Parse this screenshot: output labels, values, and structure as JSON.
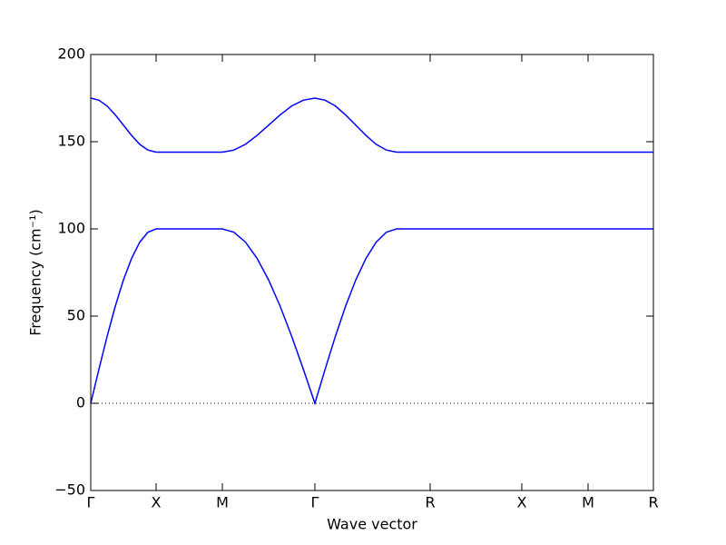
{
  "chart_data": {
    "type": "line",
    "xlabel": "Wave vector",
    "ylabel": "Frequency (cm⁻¹)",
    "x": [
      0,
      0.09,
      0.18,
      0.27,
      0.36,
      0.45,
      0.54,
      0.63,
      0.72,
      1.08,
      1.45,
      1.5775,
      1.705,
      1.8325,
      1.96,
      2.0875,
      2.215,
      2.3425,
      2.47,
      2.5825,
      2.695,
      2.8075,
      2.92,
      3.0325,
      3.145,
      3.2575,
      3.37,
      3.74,
      4.75,
      5.48,
      6.2
    ],
    "series": [
      {
        "color": "#0000ff",
        "values": [
          0,
          19.5,
          38.3,
          55.6,
          70.7,
          83.1,
          92.4,
          98.1,
          100,
          100,
          100,
          98.1,
          92.4,
          83.1,
          70.7,
          55.6,
          38.3,
          19.5,
          0,
          19.5,
          38.3,
          55.6,
          70.7,
          83.1,
          92.4,
          98.1,
          100,
          100,
          100,
          100,
          100
        ]
      },
      {
        "color": "#0000ff",
        "values": [
          175,
          173.8,
          170.5,
          165.4,
          159.5,
          153.6,
          148.5,
          145.2,
          144,
          144,
          144,
          145.2,
          148.5,
          153.6,
          159.5,
          165.4,
          170.5,
          173.8,
          175,
          173.8,
          170.5,
          165.4,
          159.5,
          153.6,
          148.5,
          145.2,
          144,
          144,
          144,
          144,
          144
        ]
      }
    ],
    "xlim": [
      0,
      6.2
    ],
    "xticks": [
      {
        "value": 0,
        "label": "Γ"
      },
      {
        "value": 0.72,
        "label": "X"
      },
      {
        "value": 1.45,
        "label": "M"
      },
      {
        "value": 2.47,
        "label": "Γ"
      },
      {
        "value": 3.74,
        "label": "R"
      },
      {
        "value": 4.75,
        "label": "X"
      },
      {
        "value": 5.48,
        "label": "M"
      },
      {
        "value": 6.2,
        "label": "R"
      }
    ],
    "ylim": [
      -50,
      200
    ],
    "yticks": [
      {
        "value": -50,
        "label": "−50"
      },
      0,
      50,
      100,
      150,
      200
    ],
    "reference_line": {
      "y": 0,
      "style": "dotted"
    },
    "grid": false
  }
}
